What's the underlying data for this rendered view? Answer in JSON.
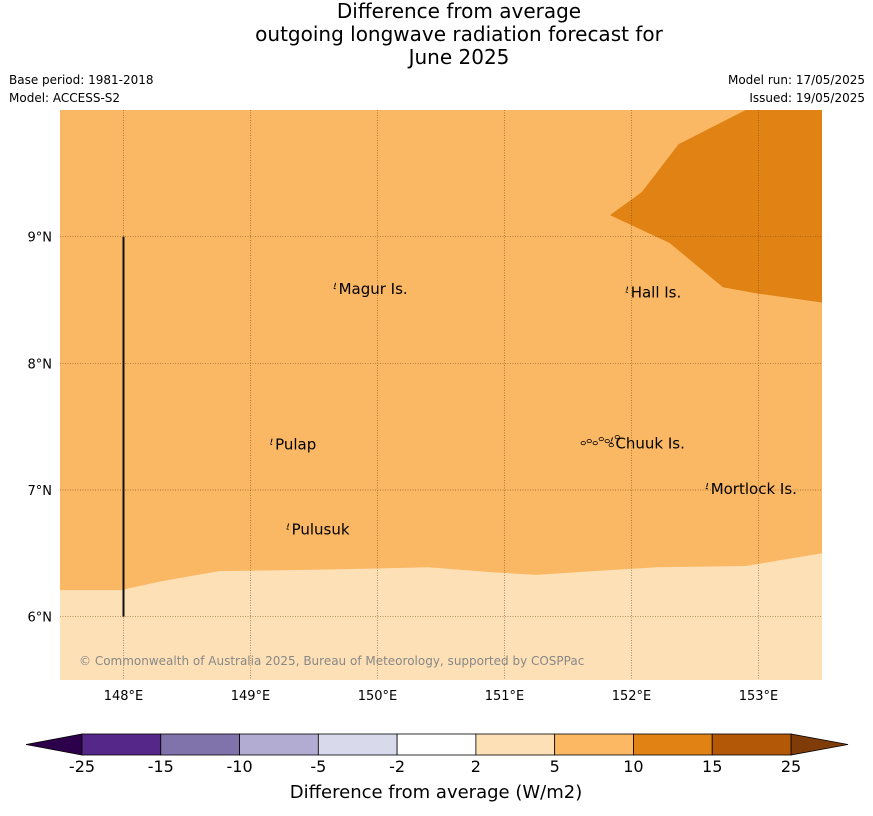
{
  "header": {
    "title_line1": "Difference from average",
    "title_line2": "outgoing longwave radiation forecast for",
    "title_line3": "June 2025",
    "base_period": "Base period: 1981-2018",
    "model": "Model: ACCESS-S2",
    "model_run": "Model run: 17/05/2025",
    "issued": "Issued: 19/05/2025"
  },
  "copyright": "© Commonwealth of Australia 2025, Bureau of Meteorology, supported by COSPPac",
  "chart_data": {
    "type": "heatmap",
    "xlim": [
      147.5,
      153.5
    ],
    "ylim": [
      5.5,
      10.0
    ],
    "x_ticks": [
      148,
      149,
      150,
      151,
      152,
      153
    ],
    "x_tick_labels": [
      "148°E",
      "149°E",
      "150°E",
      "151°E",
      "152°E",
      "153°E"
    ],
    "y_ticks": [
      6,
      7,
      8,
      9
    ],
    "y_tick_labels": [
      "6°N",
      "7°N",
      "8°N",
      "9°N"
    ],
    "grid": true,
    "regions": [
      {
        "category": "2 to 5",
        "color": "#fde0b6",
        "polygon": [
          [
            147.5,
            5.5
          ],
          [
            153.5,
            5.5
          ],
          [
            153.5,
            6.5
          ],
          [
            147.5,
            6.5
          ]
        ]
      },
      {
        "category": "5 to 10",
        "color": "#fbb864",
        "polygon": [
          [
            147.5,
            6.21
          ],
          [
            147.7,
            6.21
          ],
          [
            147.98,
            6.21
          ],
          [
            148.3,
            6.28
          ],
          [
            148.75,
            6.36
          ],
          [
            149.5,
            6.37
          ],
          [
            150.0,
            6.38
          ],
          [
            150.4,
            6.39
          ],
          [
            150.9,
            6.35
          ],
          [
            151.25,
            6.33
          ],
          [
            151.7,
            6.36
          ],
          [
            152.2,
            6.39
          ],
          [
            152.9,
            6.4
          ],
          [
            153.5,
            6.5
          ],
          [
            153.5,
            10.0
          ],
          [
            147.5,
            10.0
          ]
        ]
      },
      {
        "category": "10 to 15",
        "color": "#e08214",
        "polygon": [
          [
            151.83,
            9.17
          ],
          [
            152.08,
            9.35
          ],
          [
            152.37,
            9.73
          ],
          [
            152.9,
            10.0
          ],
          [
            153.5,
            10.0
          ],
          [
            153.5,
            8.48
          ],
          [
            153.0,
            8.55
          ],
          [
            152.72,
            8.6
          ],
          [
            152.3,
            8.95
          ]
        ]
      },
      {
        "category": "2 to 5",
        "color": "#fde0b6",
        "polygon": [
          [
            147.5,
            5.5
          ],
          [
            148.03,
            5.5
          ],
          [
            148.5,
            5.55
          ],
          [
            149.0,
            5.64
          ],
          [
            149.5,
            5.71
          ],
          [
            150.0,
            5.74
          ],
          [
            150.7,
            5.77
          ],
          [
            151.2,
            5.79
          ],
          [
            151.7,
            5.79
          ],
          [
            152.3,
            5.78
          ],
          [
            152.9,
            5.76
          ],
          [
            153.5,
            5.8
          ],
          [
            153.5,
            5.5
          ]
        ]
      }
    ],
    "vertical_line": {
      "x": 148.0,
      "y_from": 6.0,
      "y_to": 9.0
    },
    "places": [
      {
        "name": "Magur Is.",
        "lon": 149.67,
        "lat": 8.58
      },
      {
        "name": "Hall Is.",
        "lon": 151.97,
        "lat": 8.55
      },
      {
        "name": "Pulap",
        "lon": 149.17,
        "lat": 7.35
      },
      {
        "name": "Chuuk Is.",
        "lon": 151.85,
        "lat": 7.36
      },
      {
        "name": "Mortlock Is.",
        "lon": 152.6,
        "lat": 7.0
      },
      {
        "name": "Pulusuk",
        "lon": 149.3,
        "lat": 6.68
      }
    ],
    "colorbar": {
      "label": "Difference from average (W/m2)",
      "boundaries": [
        "-25",
        "-15",
        "-10",
        "-5",
        "-2",
        "2",
        "5",
        "10",
        "15",
        "25"
      ],
      "colors": [
        "#542788",
        "#8073ac",
        "#b2abd2",
        "#d8daeb",
        "#ffffff",
        "#fee0b6",
        "#fdb863",
        "#e08214",
        "#b35806"
      ],
      "extend_low_color": "#2d004b",
      "extend_high_color": "#7f3b08"
    }
  }
}
